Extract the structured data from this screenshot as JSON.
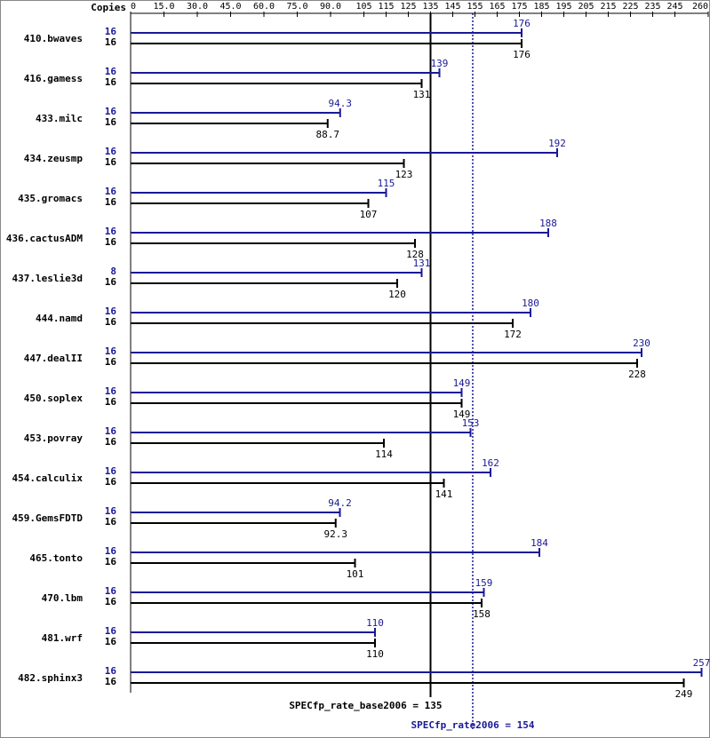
{
  "chart_data": {
    "type": "bar",
    "copies_label": "Copies",
    "categories": [
      "410.bwaves",
      "416.gamess",
      "433.milc",
      "434.zeusmp",
      "435.gromacs",
      "436.cactusADM",
      "437.leslie3d",
      "444.namd",
      "447.dealII",
      "450.soplex",
      "453.povray",
      "454.calculix",
      "459.GemsFDTD",
      "465.tonto",
      "470.lbm",
      "481.wrf",
      "482.sphinx3"
    ],
    "series": [
      {
        "color": "#191996",
        "copies": [
          16,
          16,
          16,
          16,
          16,
          16,
          8,
          16,
          16,
          16,
          16,
          16,
          16,
          16,
          16,
          16,
          16
        ],
        "values": [
          176,
          139,
          94.3,
          192,
          115,
          188,
          131,
          180,
          230,
          149,
          153,
          162,
          94.2,
          184,
          159,
          110,
          257
        ]
      },
      {
        "color": "#000000",
        "copies": [
          16,
          16,
          16,
          16,
          16,
          16,
          16,
          16,
          16,
          16,
          16,
          16,
          16,
          16,
          16,
          16,
          16
        ],
        "values": [
          176,
          131,
          88.7,
          123,
          107,
          128,
          120,
          172,
          228,
          149,
          114,
          141,
          92.3,
          101,
          158,
          110,
          249
        ]
      }
    ],
    "xlim": [
      0,
      260
    ],
    "xticks": [
      0,
      {
        "value": 15,
        "label": "15.0"
      },
      {
        "value": 30,
        "label": "30.0"
      },
      {
        "value": 45,
        "label": "45.0"
      },
      {
        "value": 60,
        "label": "60.0"
      },
      {
        "value": 75,
        "label": "75.0"
      },
      {
        "value": 90,
        "label": "90.0"
      },
      105,
      115,
      125,
      135,
      145,
      155,
      165,
      175,
      185,
      195,
      205,
      215,
      225,
      235,
      245,
      260
    ],
    "reference_lines": [
      {
        "value": 135,
        "label": "SPECfp_rate_base2006 = 135",
        "color": "#000000",
        "style": "solid"
      },
      {
        "value": 154,
        "label": "SPECfp_rate2006 = 154",
        "color": "#191996",
        "style": "dotted"
      }
    ]
  }
}
